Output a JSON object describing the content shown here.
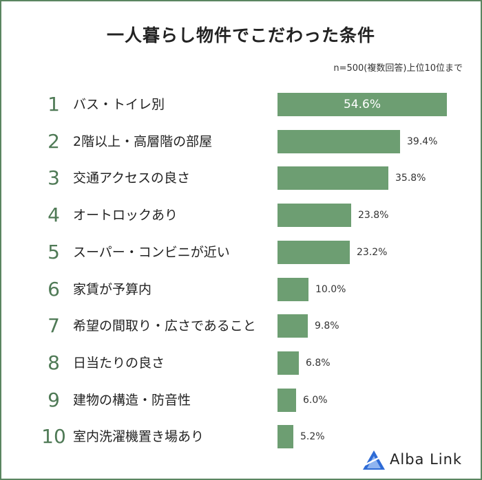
{
  "chart_data": {
    "type": "bar",
    "title": "一人暮らし物件でこだわった条件",
    "subtitle": "n=500(複数回答)上位10位まで",
    "orientation": "horizontal",
    "ranks": [
      "1",
      "2",
      "3",
      "4",
      "5",
      "6",
      "7",
      "8",
      "9",
      "10"
    ],
    "categories": [
      "バス・トイレ別",
      "2階以上・高層階の部屋",
      "交通アクセスの良さ",
      "オートロックあり",
      "スーパー・コンビニが近い",
      "家賃が予算内",
      "希望の間取り・広さであること",
      "日当たりの良さ",
      "建物の構造・防音性",
      "室内洗濯機置き場あり"
    ],
    "values": [
      54.6,
      39.4,
      35.8,
      23.8,
      23.2,
      10.0,
      9.8,
      6.8,
      6.0,
      5.2
    ],
    "value_labels": [
      "54.6%",
      "39.4%",
      "35.8%",
      "23.8%",
      "23.2%",
      "10.0%",
      "9.8%",
      "6.8%",
      "6.0%",
      "5.2%"
    ],
    "xlim": [
      0,
      60
    ],
    "grid": false,
    "bar_color": "#6d9e72",
    "rank_color": "#4f7a56"
  },
  "branding": {
    "logo_text": "Alba Link",
    "logo_color": "#2e6bd6"
  }
}
